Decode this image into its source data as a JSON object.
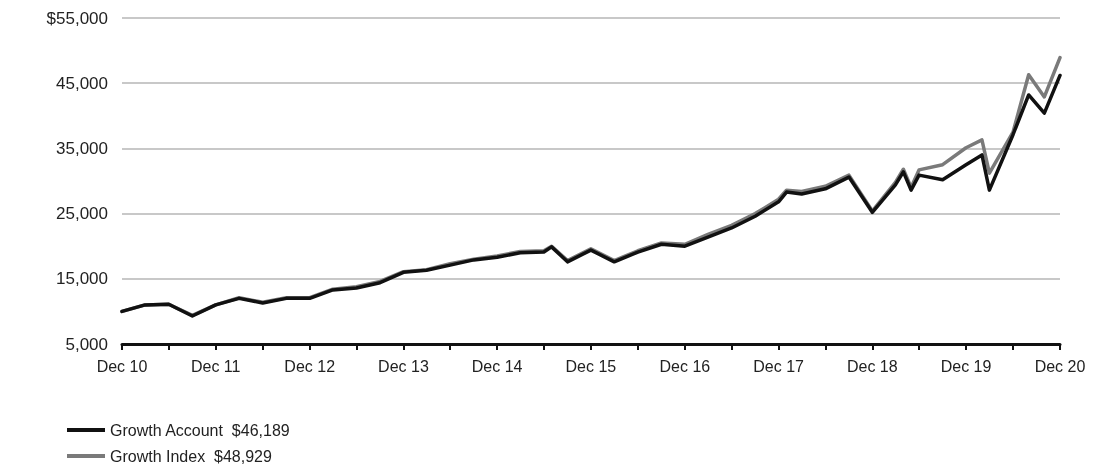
{
  "chart_data": {
    "type": "line",
    "x": [
      "2010-12",
      "2011-03",
      "2011-06",
      "2011-09",
      "2011-12",
      "2012-03",
      "2012-06",
      "2012-09",
      "2012-12",
      "2013-03",
      "2013-06",
      "2013-09",
      "2013-12",
      "2014-03",
      "2014-06",
      "2014-09",
      "2014-12",
      "2015-03",
      "2015-06",
      "2015-07",
      "2015-09",
      "2015-12",
      "2016-03",
      "2016-06",
      "2016-09",
      "2016-12",
      "2017-03",
      "2017-06",
      "2017-09",
      "2017-12",
      "2018-01",
      "2018-03",
      "2018-06",
      "2018-09",
      "2018-12",
      "2019-03",
      "2019-04",
      "2019-05",
      "2019-06",
      "2019-09",
      "2019-12",
      "2020-02",
      "2020-03",
      "2020-06",
      "2020-08",
      "2020-10",
      "2020-12"
    ],
    "series": [
      {
        "name": "Growth Index  $48,929",
        "color": "#7a7a7a",
        "values": [
          10000,
          11000,
          11100,
          9400,
          11000,
          12100,
          11400,
          12100,
          12100,
          13400,
          13800,
          14600,
          16100,
          16400,
          17300,
          18000,
          18500,
          19200,
          19300,
          20000,
          17800,
          19600,
          17800,
          19300,
          20500,
          20300,
          21800,
          23200,
          25000,
          27200,
          28600,
          28400,
          29200,
          30900,
          25400,
          29800,
          31800,
          29000,
          31700,
          32500,
          35100,
          36300,
          31200,
          37500,
          46300,
          42900,
          48929
        ]
      },
      {
        "name": "Growth Account  $46,189",
        "color": "#111111",
        "values": [
          10000,
          11000,
          11100,
          9300,
          11000,
          12000,
          11300,
          12000,
          12000,
          13300,
          13600,
          14400,
          16000,
          16300,
          17100,
          17900,
          18300,
          19000,
          19100,
          19900,
          17600,
          19400,
          17600,
          19100,
          20300,
          20000,
          21400,
          22800,
          24600,
          26800,
          28300,
          28000,
          28800,
          30600,
          25200,
          29400,
          31400,
          28600,
          30900,
          30200,
          32500,
          34000,
          28600,
          37100,
          43200,
          40400,
          46189
        ]
      }
    ],
    "ylim": [
      5000,
      55000
    ],
    "yticks": [
      {
        "value": 5000,
        "label": "5,000"
      },
      {
        "value": 15000,
        "label": "15,000"
      },
      {
        "value": 25000,
        "label": "25,000"
      },
      {
        "value": 35000,
        "label": "35,000"
      },
      {
        "value": 45000,
        "label": "45,000"
      },
      {
        "value": 55000,
        "label": "$55,000"
      }
    ],
    "xlim": [
      "2010-12",
      "2020-12"
    ],
    "xticks": [
      {
        "value": "2010-12",
        "label": "Dec 10"
      },
      {
        "value": "2011-06",
        "label": null
      },
      {
        "value": "2011-12",
        "label": "Dec 11"
      },
      {
        "value": "2012-06",
        "label": null
      },
      {
        "value": "2012-12",
        "label": "Dec 12"
      },
      {
        "value": "2013-06",
        "label": null
      },
      {
        "value": "2013-12",
        "label": "Dec 13"
      },
      {
        "value": "2014-06",
        "label": null
      },
      {
        "value": "2014-12",
        "label": "Dec 14"
      },
      {
        "value": "2015-06",
        "label": null
      },
      {
        "value": "2015-12",
        "label": "Dec 15"
      },
      {
        "value": "2016-06",
        "label": null
      },
      {
        "value": "2016-12",
        "label": "Dec 16"
      },
      {
        "value": "2017-06",
        "label": null
      },
      {
        "value": "2017-12",
        "label": "Dec 17"
      },
      {
        "value": "2018-06",
        "label": null
      },
      {
        "value": "2018-12",
        "label": "Dec 18"
      },
      {
        "value": "2019-06",
        "label": null
      },
      {
        "value": "2019-12",
        "label": "Dec 19"
      },
      {
        "value": "2020-06",
        "label": null
      },
      {
        "value": "2020-12",
        "label": "Dec 20"
      }
    ],
    "grid": "y",
    "legend": "bottom left",
    "marker": "none",
    "line_style": "solid"
  }
}
